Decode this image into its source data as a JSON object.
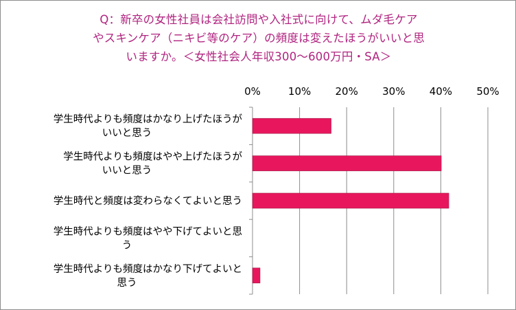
{
  "title": {
    "line1": "Q：新卒の女性社員は会社訪問や入社式に向けて、ムダ毛ケア",
    "line2": "やスキンケア（ニキビ等のケア）の頻度は変えたほうがいいと思",
    "line3": "いますか。＜女性社会人年収300～600万円・SA＞"
  },
  "colors": {
    "title": "#b0237f",
    "bar": "#e8175d"
  },
  "chart_data": {
    "type": "bar",
    "orientation": "horizontal",
    "categories": [
      [
        "学生時代よりも頻度はかなり上げたほうが",
        "いいと思う"
      ],
      [
        "学生時代よりも頻度はやや上げたほうが",
        "いいと思う"
      ],
      [
        "学生時代と頻度は変わらなくてよいと思う"
      ],
      [
        "学生時代よりも頻度はやや下げてよいと思",
        "う"
      ],
      [
        "学生時代よりも頻度はかなり下げてよいと",
        "思う"
      ]
    ],
    "values": [
      16.7,
      40.1,
      41.7,
      0.0,
      1.6
    ],
    "xlim": [
      0,
      50
    ],
    "ticks": [
      "0%",
      "10%",
      "20%",
      "30%",
      "40%",
      "50%"
    ],
    "tick_values": [
      0,
      10,
      20,
      30,
      40,
      50
    ],
    "axis_position": "top",
    "grid": true
  }
}
